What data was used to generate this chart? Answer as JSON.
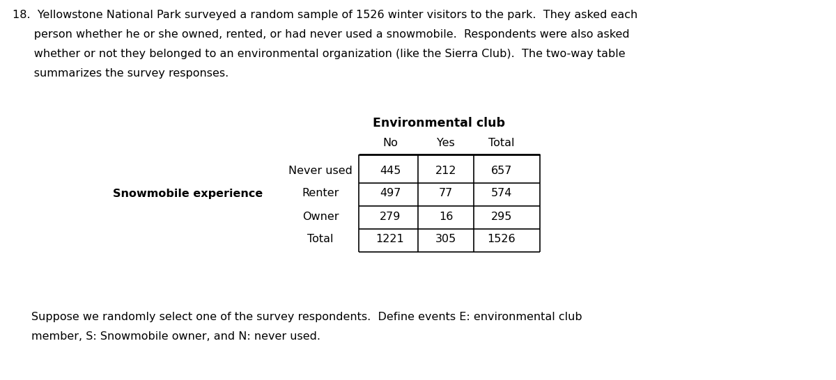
{
  "background_color": "#ffffff",
  "intro_lines": [
    "18.  Yellowstone National Park surveyed a random sample of 1526 winter visitors to the park.  They asked each",
    "      person whether he or she owned, rented, or had never used a snowmobile.  Respondents were also asked",
    "      whether or not they belonged to an environmental organization (like the Sierra Club).  The two-way table",
    "      summarizes the survey responses."
  ],
  "footer_lines": [
    "Suppose we randomly select one of the survey respondents.  Define events E: environmental club",
    "member, S: Snowmobile owner, and N: never used."
  ],
  "table_title": "Environmental club",
  "col_headers": [
    "No",
    "Yes",
    "Total"
  ],
  "row_label_group": "Snowmobile experience",
  "row_labels": [
    "Never used",
    "Renter",
    "Owner",
    "Total"
  ],
  "table_data": [
    [
      445,
      212,
      657
    ],
    [
      497,
      77,
      574
    ],
    [
      279,
      16,
      295
    ],
    [
      1221,
      305,
      1526
    ]
  ],
  "font_size_body": 11.5,
  "font_size_table": 11.5,
  "font_size_table_title": 12.5
}
